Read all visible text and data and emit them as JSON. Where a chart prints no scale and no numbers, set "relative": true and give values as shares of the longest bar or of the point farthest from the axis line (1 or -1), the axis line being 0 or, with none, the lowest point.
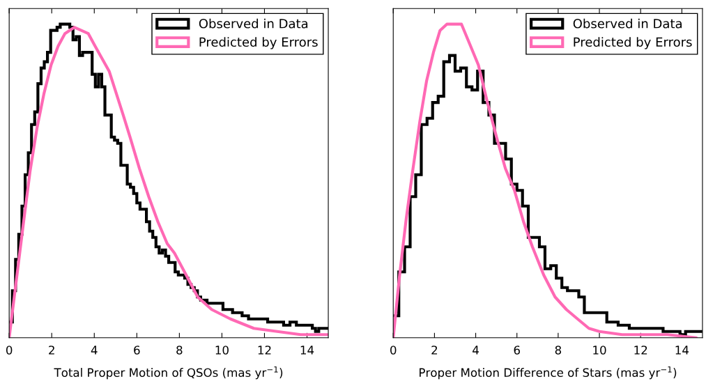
{
  "chart_data": [
    {
      "type": "histogram",
      "relative": true,
      "xlabel": "Total Proper Motion of QSOs (mas yr$^{−1}$)",
      "xlim": [
        0,
        15
      ],
      "xticks": [
        0,
        2,
        4,
        6,
        8,
        10,
        12,
        14
      ],
      "legend": "top right",
      "grid": false,
      "bins": [
        0,
        0.15,
        0.3,
        0.45,
        0.6,
        0.75,
        0.9,
        1.05,
        1.2,
        1.35,
        1.5,
        1.65,
        1.8,
        1.95,
        2.1,
        2.25,
        2.4,
        2.55,
        2.7,
        2.85,
        3.0,
        3.15,
        3.3,
        3.45,
        3.6,
        3.75,
        3.9,
        4.05,
        4.2,
        4.35,
        4.5,
        4.65,
        4.8,
        4.95,
        5.1,
        5.25,
        5.4,
        5.55,
        5.7,
        5.85,
        6.0,
        6.15,
        6.3,
        6.45,
        6.6,
        6.75,
        6.9,
        7.05,
        7.2,
        7.35,
        7.5,
        7.65,
        7.8,
        7.95,
        8.1,
        8.25,
        8.4,
        8.55,
        8.7,
        8.85,
        9.0,
        9.15,
        9.3,
        9.45,
        9.6,
        9.75,
        9.9,
        10.05,
        10.2,
        10.35,
        10.5,
        10.65,
        10.8,
        10.95,
        11.1,
        11.25,
        11.4,
        11.55,
        11.7,
        11.85,
        12.0,
        12.15,
        12.3,
        12.45,
        12.6,
        12.75,
        12.9,
        13.05,
        13.2,
        13.35,
        13.5,
        13.65,
        13.8,
        13.95,
        14.1,
        14.25,
        14.4,
        14.55,
        14.7,
        14.85,
        15.0
      ],
      "series": [
        {
          "name": "Observed in Data",
          "color": "#000000",
          "values": [
            0.05,
            0.15,
            0.25,
            0.33,
            0.42,
            0.52,
            0.59,
            0.68,
            0.72,
            0.81,
            0.86,
            0.88,
            0.91,
            0.98,
            0.98,
            0.99,
            1.0,
            1.0,
            1.0,
            0.99,
            0.95,
            0.96,
            0.9,
            0.91,
            0.91,
            0.91,
            0.84,
            0.8,
            0.84,
            0.8,
            0.71,
            0.71,
            0.64,
            0.63,
            0.62,
            0.55,
            0.55,
            0.49,
            0.48,
            0.46,
            0.43,
            0.41,
            0.41,
            0.37,
            0.34,
            0.32,
            0.29,
            0.27,
            0.28,
            0.26,
            0.24,
            0.24,
            0.21,
            0.2,
            0.2,
            0.19,
            0.17,
            0.16,
            0.15,
            0.13,
            0.12,
            0.12,
            0.11,
            0.11,
            0.11,
            0.11,
            0.11,
            0.09,
            0.09,
            0.09,
            0.08,
            0.08,
            0.08,
            0.07,
            0.07,
            0.06,
            0.06,
            0.06,
            0.06,
            0.06,
            0.06,
            0.05,
            0.05,
            0.05,
            0.05,
            0.05,
            0.04,
            0.04,
            0.05,
            0.05,
            0.04,
            0.04,
            0.04,
            0.04,
            0.04,
            0.03,
            0.02,
            0.03,
            0.03,
            0.03
          ]
        },
        {
          "name": "Predicted by Errors",
          "type": "line",
          "color": "#ff69b4",
          "x": [
            0,
            0.33,
            0.66,
            0.98,
            1.31,
            1.64,
            1.97,
            2.3,
            2.62,
            3.06,
            3.39,
            3.72,
            4.04,
            4.37,
            4.7,
            5.03,
            5.36,
            5.68,
            6.12,
            6.56,
            6.99,
            7.43,
            7.77,
            8.32,
            8.86,
            9.52,
            10.4,
            11.5,
            12.6,
            13.7,
            15.0
          ],
          "values": [
            0,
            0.18,
            0.36,
            0.53,
            0.67,
            0.78,
            0.87,
            0.93,
            0.97,
            0.99,
            0.98,
            0.97,
            0.93,
            0.89,
            0.85,
            0.78,
            0.71,
            0.64,
            0.54,
            0.45,
            0.37,
            0.3,
            0.27,
            0.2,
            0.13,
            0.09,
            0.06,
            0.03,
            0.02,
            0.01,
            0.01
          ]
        }
      ]
    },
    {
      "type": "histogram",
      "relative": true,
      "xlabel": "Proper Motion Difference of Stars (mas yr$^{−1}$)",
      "xlim": [
        0,
        15
      ],
      "xticks": [
        0,
        2,
        4,
        6,
        8,
        10,
        12,
        14
      ],
      "legend": "top right",
      "grid": false,
      "bins": [
        0,
        0.27,
        0.55,
        0.82,
        1.09,
        1.36,
        1.64,
        1.91,
        2.18,
        2.45,
        2.73,
        3.0,
        3.27,
        3.55,
        3.82,
        4.09,
        4.36,
        4.64,
        4.91,
        5.18,
        5.45,
        5.73,
        6.0,
        6.27,
        6.55,
        6.82,
        7.09,
        7.36,
        7.64,
        7.91,
        8.18,
        8.45,
        8.73,
        9.0,
        9.27,
        9.55,
        9.82,
        10.09,
        10.36,
        10.64,
        10.91,
        11.18,
        11.45,
        11.73,
        12.0,
        12.27,
        12.55,
        12.82,
        13.09,
        13.36,
        13.64,
        13.91,
        14.18,
        14.45,
        14.73,
        15.0
      ],
      "series": [
        {
          "name": "Observed in Data",
          "color": "#000000",
          "values": [
            0.07,
            0.21,
            0.29,
            0.45,
            0.52,
            0.68,
            0.7,
            0.75,
            0.77,
            0.88,
            0.9,
            0.85,
            0.86,
            0.8,
            0.79,
            0.85,
            0.75,
            0.71,
            0.62,
            0.62,
            0.57,
            0.49,
            0.47,
            0.42,
            0.32,
            0.32,
            0.29,
            0.22,
            0.23,
            0.19,
            0.16,
            0.15,
            0.15,
            0.13,
            0.08,
            0.08,
            0.08,
            0.08,
            0.05,
            0.05,
            0.04,
            0.04,
            0.03,
            0.03,
            0.03,
            0.03,
            0.03,
            0.03,
            0.02,
            0.02,
            0.02,
            0.01,
            0.02,
            0.02,
            0.02
          ]
        },
        {
          "name": "Predicted by Errors",
          "type": "line",
          "color": "#ff69b4",
          "x": [
            0,
            0.31,
            0.63,
            0.96,
            1.29,
            1.62,
            1.95,
            2.27,
            2.6,
            2.93,
            3.31,
            3.69,
            4.13,
            4.57,
            5.01,
            5.44,
            5.88,
            6.32,
            6.75,
            7.3,
            7.85,
            8.4,
            8.94,
            9.49,
            10.0,
            11.1,
            12.2,
            13.3,
            14.7
          ],
          "values": [
            0,
            0.2,
            0.38,
            0.54,
            0.69,
            0.82,
            0.91,
            0.98,
            1.0,
            1.0,
            1.0,
            0.94,
            0.87,
            0.75,
            0.64,
            0.54,
            0.47,
            0.37,
            0.29,
            0.2,
            0.13,
            0.09,
            0.06,
            0.03,
            0.02,
            0.01,
            0.01,
            0.01,
            0.0
          ]
        }
      ]
    }
  ]
}
